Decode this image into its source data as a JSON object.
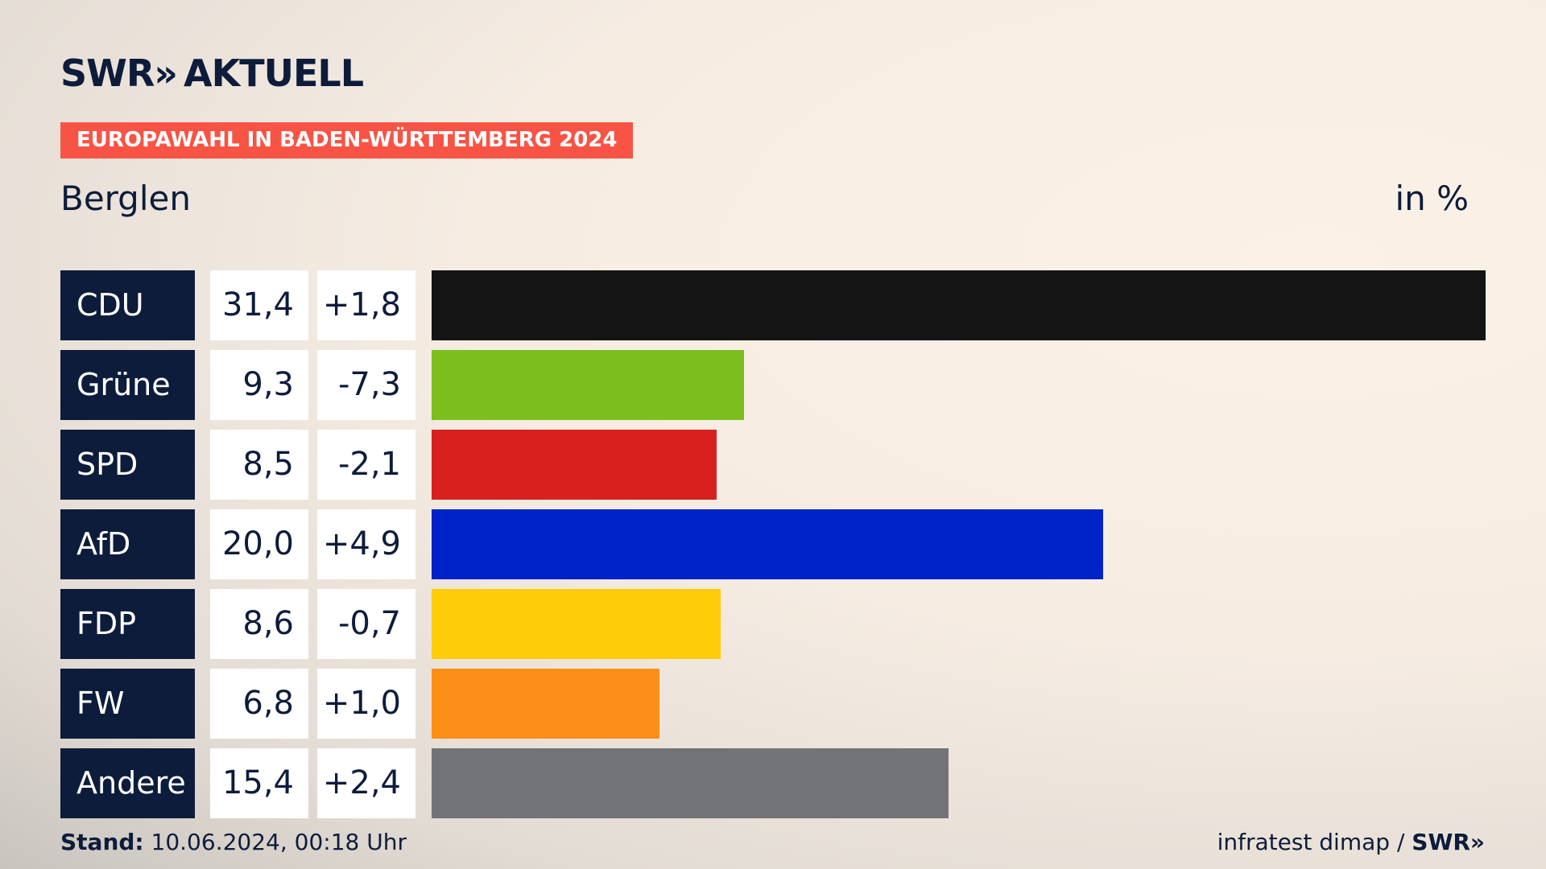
{
  "brand": {
    "name": "SWR",
    "chevrons": "»",
    "section": "AKTUELL"
  },
  "tag": "EUROPAWAHL IN BADEN-WÜRTTEMBERG 2024",
  "place": "Berglen",
  "unit": "in %",
  "footer": {
    "stand_label": "Stand:",
    "stand_value": "10.06.2024, 00:18 Uhr",
    "source": "infratest dimap",
    "separator": "/",
    "source_brand": "SWR»"
  },
  "chart_data": {
    "type": "bar",
    "orientation": "horizontal",
    "categories": [
      "CDU",
      "Grüne",
      "SPD",
      "AfD",
      "FDP",
      "FW",
      "Andere"
    ],
    "values": [
      31.4,
      9.3,
      8.5,
      20.0,
      8.6,
      6.8,
      15.4
    ],
    "values_text": [
      "31,4",
      "9,3",
      "8,5",
      "20,0",
      "8,6",
      "6,8",
      "15,4"
    ],
    "changes": [
      1.8,
      -7.3,
      -2.1,
      4.9,
      -0.7,
      1.0,
      2.4
    ],
    "changes_text": [
      "+1,8",
      "-7,3",
      "-2,1",
      "+4,9",
      "-0,7",
      "+1,0",
      "+2,4"
    ],
    "colors": [
      "#141414",
      "#7bbe1e",
      "#d8201e",
      "#0022c9",
      "#ffcc09",
      "#fd8f18",
      "#727376"
    ],
    "xlim": [
      0,
      31.4
    ],
    "grid": false,
    "legend": "none"
  }
}
